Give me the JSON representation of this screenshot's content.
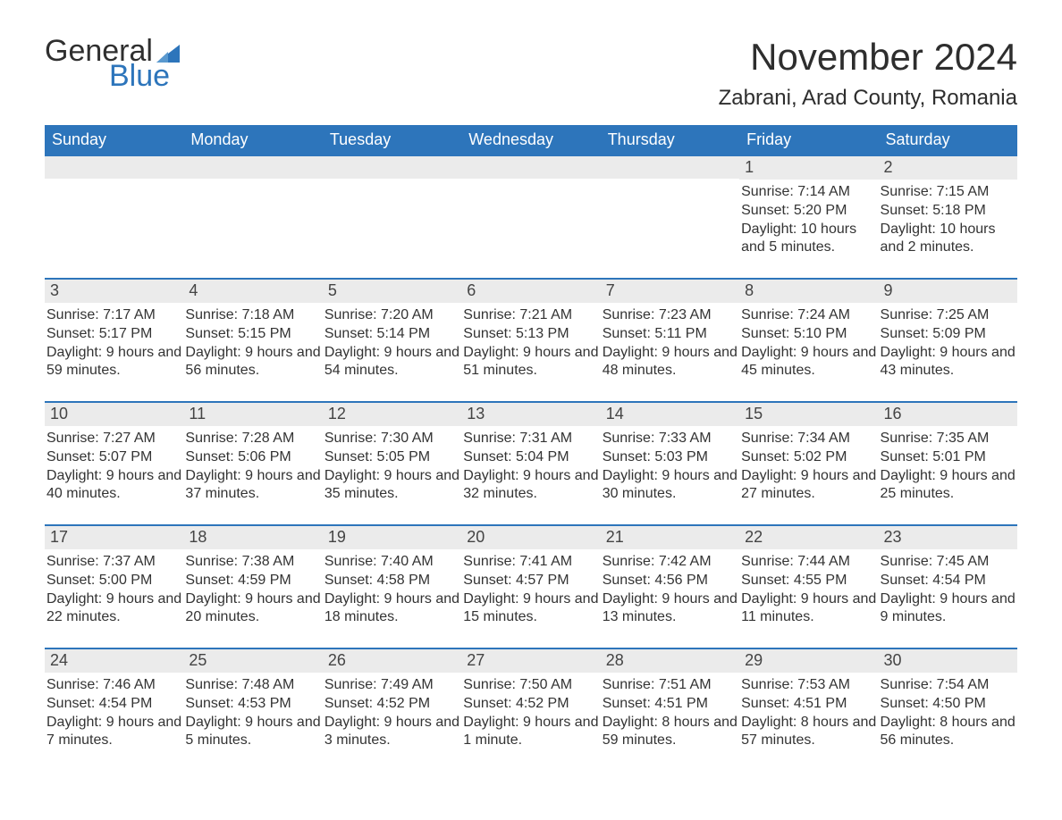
{
  "brand": {
    "word1": "General",
    "word2": "Blue",
    "accent": "#2d75bb"
  },
  "title": "November 2024",
  "location": "Zabrani, Arad County, Romania",
  "weekdays": [
    "Sunday",
    "Monday",
    "Tuesday",
    "Wednesday",
    "Thursday",
    "Friday",
    "Saturday"
  ],
  "colors": {
    "header_bg": "#2d75bb",
    "header_text": "#ffffff",
    "daynum_bg": "#ebebeb",
    "week_border": "#2d75bb",
    "body_text": "#333333",
    "page_bg": "#ffffff"
  },
  "typography": {
    "title_fontsize": 42,
    "location_fontsize": 24,
    "weekday_fontsize": 18,
    "daynum_fontsize": 18,
    "body_fontsize": 16
  },
  "layout": {
    "columns": 7,
    "rows": 5,
    "first_weekday_index": 5
  },
  "weeks": [
    [
      {
        "n": "",
        "sunrise": "",
        "sunset": "",
        "daylight": ""
      },
      {
        "n": "",
        "sunrise": "",
        "sunset": "",
        "daylight": ""
      },
      {
        "n": "",
        "sunrise": "",
        "sunset": "",
        "daylight": ""
      },
      {
        "n": "",
        "sunrise": "",
        "sunset": "",
        "daylight": ""
      },
      {
        "n": "",
        "sunrise": "",
        "sunset": "",
        "daylight": ""
      },
      {
        "n": "1",
        "sunrise": "Sunrise: 7:14 AM",
        "sunset": "Sunset: 5:20 PM",
        "daylight": "Daylight: 10 hours and 5 minutes."
      },
      {
        "n": "2",
        "sunrise": "Sunrise: 7:15 AM",
        "sunset": "Sunset: 5:18 PM",
        "daylight": "Daylight: 10 hours and 2 minutes."
      }
    ],
    [
      {
        "n": "3",
        "sunrise": "Sunrise: 7:17 AM",
        "sunset": "Sunset: 5:17 PM",
        "daylight": "Daylight: 9 hours and 59 minutes."
      },
      {
        "n": "4",
        "sunrise": "Sunrise: 7:18 AM",
        "sunset": "Sunset: 5:15 PM",
        "daylight": "Daylight: 9 hours and 56 minutes."
      },
      {
        "n": "5",
        "sunrise": "Sunrise: 7:20 AM",
        "sunset": "Sunset: 5:14 PM",
        "daylight": "Daylight: 9 hours and 54 minutes."
      },
      {
        "n": "6",
        "sunrise": "Sunrise: 7:21 AM",
        "sunset": "Sunset: 5:13 PM",
        "daylight": "Daylight: 9 hours and 51 minutes."
      },
      {
        "n": "7",
        "sunrise": "Sunrise: 7:23 AM",
        "sunset": "Sunset: 5:11 PM",
        "daylight": "Daylight: 9 hours and 48 minutes."
      },
      {
        "n": "8",
        "sunrise": "Sunrise: 7:24 AM",
        "sunset": "Sunset: 5:10 PM",
        "daylight": "Daylight: 9 hours and 45 minutes."
      },
      {
        "n": "9",
        "sunrise": "Sunrise: 7:25 AM",
        "sunset": "Sunset: 5:09 PM",
        "daylight": "Daylight: 9 hours and 43 minutes."
      }
    ],
    [
      {
        "n": "10",
        "sunrise": "Sunrise: 7:27 AM",
        "sunset": "Sunset: 5:07 PM",
        "daylight": "Daylight: 9 hours and 40 minutes."
      },
      {
        "n": "11",
        "sunrise": "Sunrise: 7:28 AM",
        "sunset": "Sunset: 5:06 PM",
        "daylight": "Daylight: 9 hours and 37 minutes."
      },
      {
        "n": "12",
        "sunrise": "Sunrise: 7:30 AM",
        "sunset": "Sunset: 5:05 PM",
        "daylight": "Daylight: 9 hours and 35 minutes."
      },
      {
        "n": "13",
        "sunrise": "Sunrise: 7:31 AM",
        "sunset": "Sunset: 5:04 PM",
        "daylight": "Daylight: 9 hours and 32 minutes."
      },
      {
        "n": "14",
        "sunrise": "Sunrise: 7:33 AM",
        "sunset": "Sunset: 5:03 PM",
        "daylight": "Daylight: 9 hours and 30 minutes."
      },
      {
        "n": "15",
        "sunrise": "Sunrise: 7:34 AM",
        "sunset": "Sunset: 5:02 PM",
        "daylight": "Daylight: 9 hours and 27 minutes."
      },
      {
        "n": "16",
        "sunrise": "Sunrise: 7:35 AM",
        "sunset": "Sunset: 5:01 PM",
        "daylight": "Daylight: 9 hours and 25 minutes."
      }
    ],
    [
      {
        "n": "17",
        "sunrise": "Sunrise: 7:37 AM",
        "sunset": "Sunset: 5:00 PM",
        "daylight": "Daylight: 9 hours and 22 minutes."
      },
      {
        "n": "18",
        "sunrise": "Sunrise: 7:38 AM",
        "sunset": "Sunset: 4:59 PM",
        "daylight": "Daylight: 9 hours and 20 minutes."
      },
      {
        "n": "19",
        "sunrise": "Sunrise: 7:40 AM",
        "sunset": "Sunset: 4:58 PM",
        "daylight": "Daylight: 9 hours and 18 minutes."
      },
      {
        "n": "20",
        "sunrise": "Sunrise: 7:41 AM",
        "sunset": "Sunset: 4:57 PM",
        "daylight": "Daylight: 9 hours and 15 minutes."
      },
      {
        "n": "21",
        "sunrise": "Sunrise: 7:42 AM",
        "sunset": "Sunset: 4:56 PM",
        "daylight": "Daylight: 9 hours and 13 minutes."
      },
      {
        "n": "22",
        "sunrise": "Sunrise: 7:44 AM",
        "sunset": "Sunset: 4:55 PM",
        "daylight": "Daylight: 9 hours and 11 minutes."
      },
      {
        "n": "23",
        "sunrise": "Sunrise: 7:45 AM",
        "sunset": "Sunset: 4:54 PM",
        "daylight": "Daylight: 9 hours and 9 minutes."
      }
    ],
    [
      {
        "n": "24",
        "sunrise": "Sunrise: 7:46 AM",
        "sunset": "Sunset: 4:54 PM",
        "daylight": "Daylight: 9 hours and 7 minutes."
      },
      {
        "n": "25",
        "sunrise": "Sunrise: 7:48 AM",
        "sunset": "Sunset: 4:53 PM",
        "daylight": "Daylight: 9 hours and 5 minutes."
      },
      {
        "n": "26",
        "sunrise": "Sunrise: 7:49 AM",
        "sunset": "Sunset: 4:52 PM",
        "daylight": "Daylight: 9 hours and 3 minutes."
      },
      {
        "n": "27",
        "sunrise": "Sunrise: 7:50 AM",
        "sunset": "Sunset: 4:52 PM",
        "daylight": "Daylight: 9 hours and 1 minute."
      },
      {
        "n": "28",
        "sunrise": "Sunrise: 7:51 AM",
        "sunset": "Sunset: 4:51 PM",
        "daylight": "Daylight: 8 hours and 59 minutes."
      },
      {
        "n": "29",
        "sunrise": "Sunrise: 7:53 AM",
        "sunset": "Sunset: 4:51 PM",
        "daylight": "Daylight: 8 hours and 57 minutes."
      },
      {
        "n": "30",
        "sunrise": "Sunrise: 7:54 AM",
        "sunset": "Sunset: 4:50 PM",
        "daylight": "Daylight: 8 hours and 56 minutes."
      }
    ]
  ]
}
